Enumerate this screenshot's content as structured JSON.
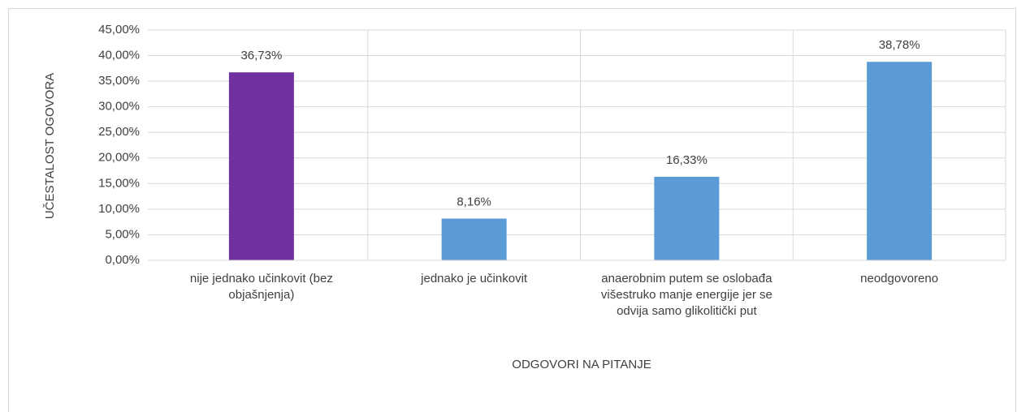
{
  "chart_data": {
    "type": "bar",
    "y_axis_label": "UČESTALOST OGOVORA",
    "x_axis_label": "ODGOVORI NA PITANJE",
    "categories": [
      "nije jednako učinkovit (bez objašnjenja)",
      "jednako je učinkovit",
      "anaerobnim putem se oslobađa višestruko manje energije jer se odvija samo glikolitički put",
      "neodgovoreno"
    ],
    "values": [
      36.73,
      8.16,
      16.33,
      38.78
    ],
    "value_labels": [
      "36,73%",
      "8,16%",
      "16,33%",
      "38,78%"
    ],
    "colors": [
      "#7030a0",
      "#5b9bd5",
      "#5b9bd5",
      "#5b9bd5"
    ],
    "ylim": [
      0,
      45
    ],
    "yticks": [
      {
        "value": 0,
        "label": "0,00%"
      },
      {
        "value": 5,
        "label": "5,00%"
      },
      {
        "value": 10,
        "label": "10,00%"
      },
      {
        "value": 15,
        "label": "15,00%"
      },
      {
        "value": 20,
        "label": "20,00%"
      },
      {
        "value": 25,
        "label": "25,00%"
      },
      {
        "value": 30,
        "label": "30,00%"
      },
      {
        "value": 35,
        "label": "35,00%"
      },
      {
        "value": 40,
        "label": "40,00%"
      },
      {
        "value": 45,
        "label": "45,00%"
      }
    ],
    "grid": true
  }
}
